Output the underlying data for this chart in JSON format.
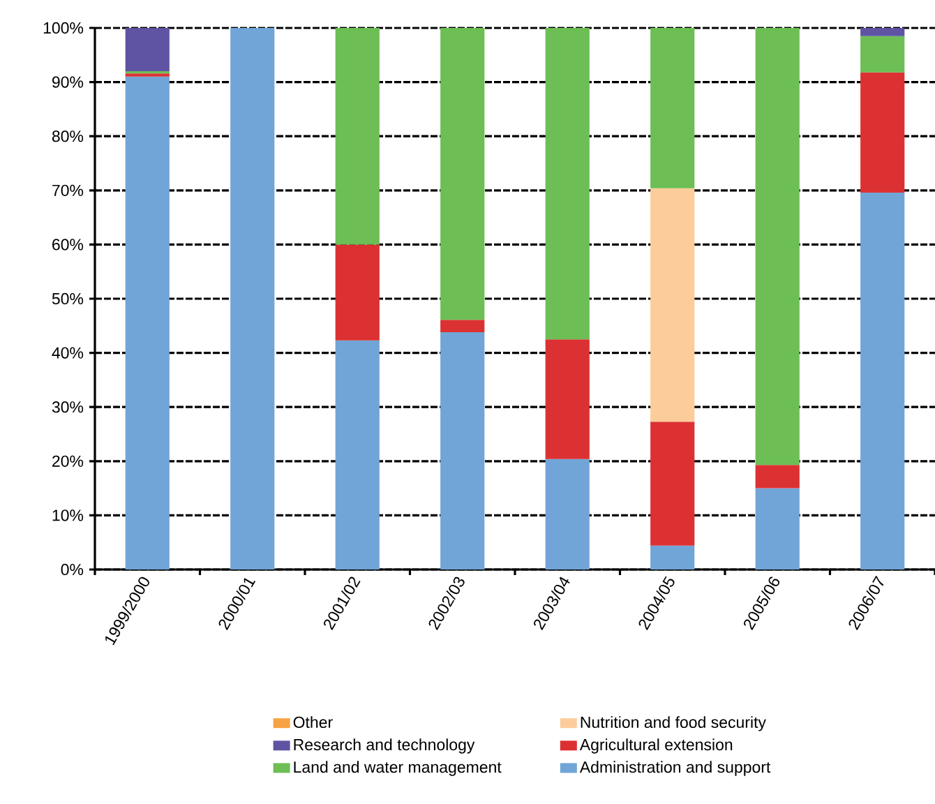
{
  "chart_data": {
    "type": "bar",
    "stacked": true,
    "categories": [
      "1999/2000",
      "2000/01",
      "2001/02",
      "2002/03",
      "2003/04",
      "2004/05",
      "2005/06",
      "2006/07"
    ],
    "series": [
      {
        "name": "Administration and support",
        "color": "#72a5d7",
        "values": [
          91.0,
          100,
          42.3,
          43.8,
          20.4,
          4.4,
          15.0,
          69.6
        ]
      },
      {
        "name": "Agricultural extension",
        "color": "#dc3132",
        "values": [
          0.6,
          null,
          17.7,
          2.3,
          22.1,
          22.9,
          4.3,
          22.2
        ]
      },
      {
        "name": "Nutrition and food security",
        "color": "#fccd9a",
        "values": [
          null,
          null,
          null,
          null,
          null,
          43.1,
          null,
          null
        ]
      },
      {
        "name": "Land and water management",
        "color": "#6dbe55",
        "values": [
          0.4,
          null,
          40.0,
          53.9,
          57.5,
          29.6,
          80.7,
          6.7
        ]
      },
      {
        "name": "Research and technology",
        "color": "#5f54a3",
        "values": [
          8.0,
          null,
          null,
          null,
          null,
          null,
          null,
          1.5
        ]
      },
      {
        "name": "Other",
        "color": "#f7a242",
        "values": [
          null,
          null,
          null,
          null,
          null,
          null,
          null,
          null
        ]
      }
    ],
    "ylim": [
      0,
      100
    ],
    "yticks": [
      {
        "value": 0,
        "label": "0%"
      },
      {
        "value": 10,
        "label": "10%"
      },
      {
        "value": 20,
        "label": "20%"
      },
      {
        "value": 30,
        "label": "30%"
      },
      {
        "value": 40,
        "label": "40%"
      },
      {
        "value": 50,
        "label": "50%"
      },
      {
        "value": 60,
        "label": "60%"
      },
      {
        "value": 70,
        "label": "70%"
      },
      {
        "value": 80,
        "label": "80%"
      },
      {
        "value": 90,
        "label": "90%"
      },
      {
        "value": 100,
        "label": "100%"
      }
    ],
    "grid": "y",
    "legend": "bottom"
  }
}
